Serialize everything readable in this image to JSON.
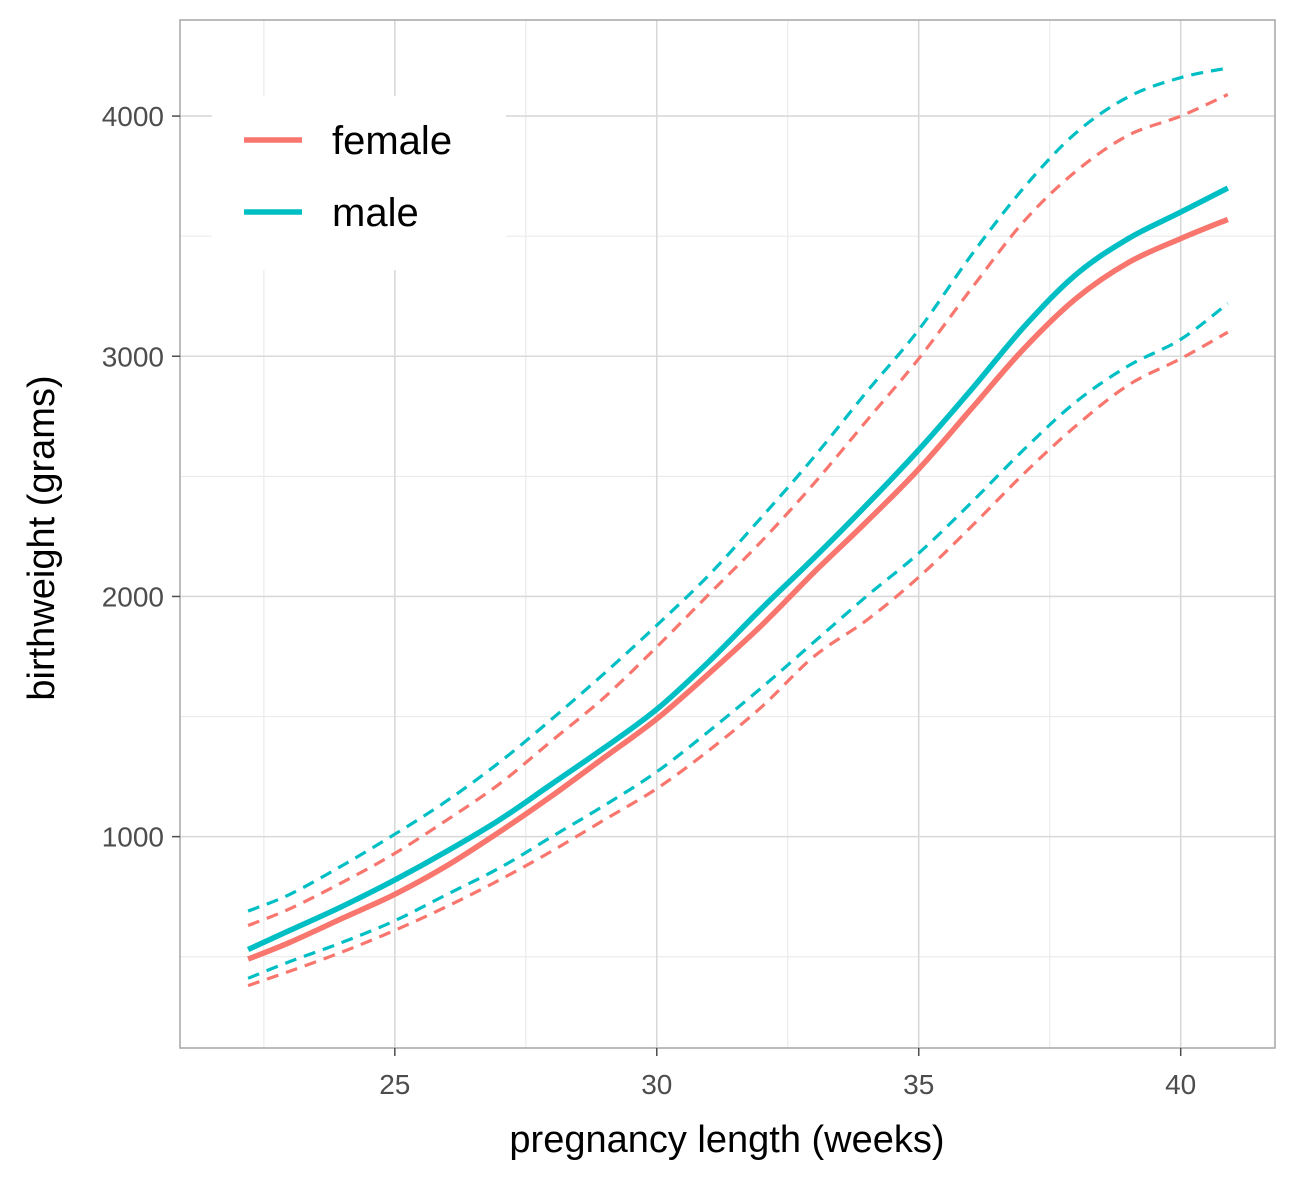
{
  "chart_data": {
    "type": "line",
    "title": "",
    "xlabel": "pregnancy length (weeks)",
    "ylabel": "birthweight (grams)",
    "xlim": [
      20.9,
      41.8
    ],
    "ylim": [
      120,
      4400
    ],
    "x_ticks": [
      25,
      30,
      35,
      40
    ],
    "y_ticks": [
      1000,
      2000,
      3000,
      4000
    ],
    "x_minor_ticks": [
      22.5,
      27.5,
      32.5,
      37.5
    ],
    "y_minor_ticks": [
      500,
      1500,
      2500,
      3500
    ],
    "grid": true,
    "legend": {
      "position": "top-left",
      "entries": [
        "female",
        "male"
      ]
    },
    "x": [
      22.2,
      23,
      24,
      25,
      26,
      27,
      28,
      29,
      30,
      31,
      32,
      33,
      34,
      35,
      36,
      37,
      38,
      39,
      40,
      40.9
    ],
    "series": [
      {
        "name": "female",
        "color": "#F8766D",
        "fit": [
          490,
          560,
          660,
          760,
          880,
          1020,
          1170,
          1330,
          1490,
          1680,
          1880,
          2100,
          2310,
          2530,
          2780,
          3030,
          3240,
          3390,
          3490,
          3570
        ],
        "lower": [
          380,
          440,
          520,
          610,
          710,
          820,
          940,
          1070,
          1200,
          1360,
          1540,
          1750,
          1900,
          2080,
          2290,
          2510,
          2710,
          2880,
          2990,
          3100
        ],
        "upper": [
          630,
          700,
          810,
          930,
          1070,
          1220,
          1400,
          1580,
          1790,
          2010,
          2230,
          2470,
          2730,
          2990,
          3280,
          3560,
          3770,
          3920,
          4000,
          4090
        ]
      },
      {
        "name": "male",
        "color": "#00BFC4",
        "fit": [
          530,
          610,
          710,
          820,
          940,
          1070,
          1220,
          1370,
          1530,
          1730,
          1950,
          2160,
          2380,
          2610,
          2860,
          3120,
          3340,
          3490,
          3600,
          3700
        ],
        "lower": [
          410,
          480,
          560,
          650,
          760,
          870,
          1000,
          1130,
          1270,
          1440,
          1620,
          1810,
          2000,
          2180,
          2390,
          2610,
          2810,
          2960,
          3070,
          3220
        ],
        "upper": [
          690,
          760,
          880,
          1010,
          1150,
          1310,
          1490,
          1680,
          1880,
          2090,
          2330,
          2580,
          2850,
          3110,
          3420,
          3700,
          3930,
          4080,
          4160,
          4200
        ]
      }
    ]
  }
}
